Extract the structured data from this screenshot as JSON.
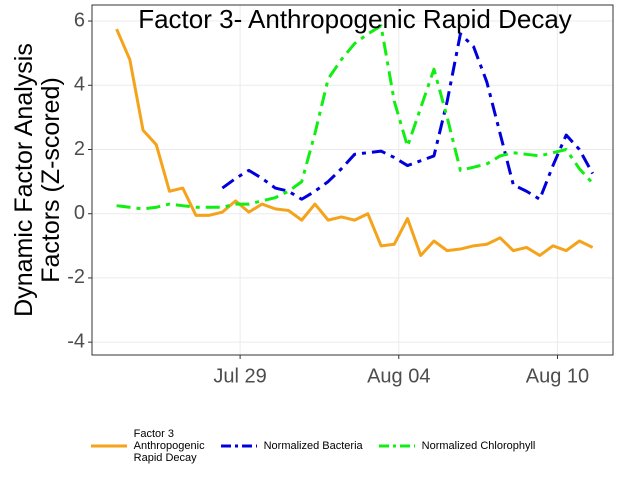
{
  "chart_data": {
    "type": "line",
    "title": "Factor 3- Anthropogenic Rapid Decay",
    "y_label": "Dynamic Factor Analysis\nFactors (Z-scored)",
    "x": [
      24.33,
      24.83,
      25.33,
      25.83,
      26.33,
      26.83,
      27.33,
      27.83,
      28.33,
      28.83,
      29.33,
      29.83,
      30.33,
      30.83,
      31.33,
      31.83,
      32.33,
      32.83,
      33.33,
      33.83,
      34.33,
      34.83,
      35.33,
      35.83,
      36.33,
      36.83,
      37.33,
      37.83,
      38.33,
      38.83,
      39.33,
      39.83,
      40.33,
      40.83,
      41.33,
      41.83,
      42.33
    ],
    "series": [
      {
        "name": "Factor 3\nAnthropogenic\nRapid Decay",
        "color": "#f5a31a",
        "linetype": "solid",
        "values": [
          5.75,
          4.8,
          2.6,
          2.15,
          0.7,
          0.8,
          -0.05,
          -0.05,
          0.05,
          0.4,
          0.05,
          0.3,
          0.15,
          0.1,
          -0.2,
          0.3,
          -0.2,
          -0.1,
          -0.2,
          0.0,
          -1.0,
          -0.95,
          -0.15,
          -1.3,
          -0.85,
          -1.15,
          -1.1,
          -1.0,
          -0.95,
          -0.75,
          -1.15,
          -1.05,
          -1.3,
          -1.0,
          -1.15,
          -0.85,
          -1.05
        ]
      },
      {
        "name": "Normalized Bacteria",
        "color": "#0000dd",
        "linetype": "dotdash",
        "values": [
          null,
          null,
          null,
          null,
          null,
          null,
          null,
          null,
          0.8,
          1.1,
          1.35,
          1.1,
          0.8,
          0.7,
          0.45,
          0.7,
          1.0,
          1.4,
          1.85,
          1.9,
          1.95,
          1.75,
          1.5,
          1.65,
          1.8,
          3.5,
          5.6,
          5.2,
          4.1,
          2.5,
          0.9,
          0.7,
          0.45,
          1.5,
          2.45,
          2.0,
          1.25
        ]
      },
      {
        "name": "Normalized Chlorophyll",
        "color": "#11ee11",
        "linetype": "dotdash",
        "values": [
          0.25,
          0.2,
          0.15,
          0.2,
          0.3,
          0.25,
          0.2,
          0.2,
          0.2,
          0.3,
          0.3,
          0.4,
          0.5,
          0.7,
          1.0,
          2.5,
          4.2,
          4.8,
          5.3,
          5.6,
          5.85,
          3.5,
          2.1,
          3.3,
          4.5,
          3.0,
          1.35,
          1.45,
          1.55,
          1.8,
          1.9,
          1.85,
          1.8,
          1.9,
          2.0,
          1.4,
          0.95
        ]
      }
    ],
    "xlim": [
      23.4,
      43.1
    ],
    "xticks": [
      {
        "value": 29,
        "label": "Jul 29"
      },
      {
        "value": 35,
        "label": "Aug 04"
      },
      {
        "value": 41,
        "label": "Aug 10"
      }
    ],
    "ylim": [
      -4.4,
      6.5
    ],
    "yticks": [
      -4,
      -2,
      0,
      2,
      4,
      6
    ],
    "grid": true
  }
}
